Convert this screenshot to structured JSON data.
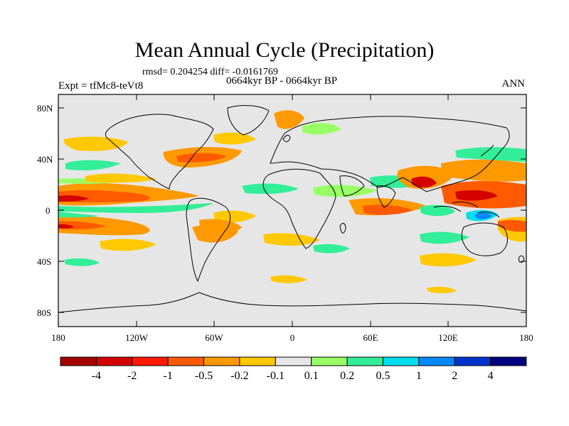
{
  "title": "Mean Annual Cycle (Precipitation)",
  "stats": "rmsd= 0.204254  diff= -0.0161769",
  "period": "0664kyr BP - 0664kyr BP",
  "expt": "Expt = tfMc8-teVt8",
  "season": "ANN",
  "map": {
    "projection": "cylindrical equidistant",
    "background_color": "#e6e6e6",
    "lat_ticks": [
      "80N",
      "40N",
      "0",
      "40S",
      "80S"
    ],
    "lon_ticks": [
      "180",
      "120W",
      "60W",
      "0",
      "60E",
      "120E",
      "180"
    ]
  },
  "colorbar": {
    "colors": [
      "#a50000",
      "#d40000",
      "#ff1a00",
      "#ff5a00",
      "#ff9900",
      "#ffc800",
      "#e6e6e6",
      "#99ff66",
      "#33ee99",
      "#00ddee",
      "#0088ff",
      "#0033cc",
      "#000080"
    ],
    "labels": [
      "-4",
      "-2",
      "-1",
      "-0.5",
      "-0.2",
      "-0.1",
      "0.1",
      "0.2",
      "0.5",
      "1",
      "2",
      "4"
    ]
  }
}
